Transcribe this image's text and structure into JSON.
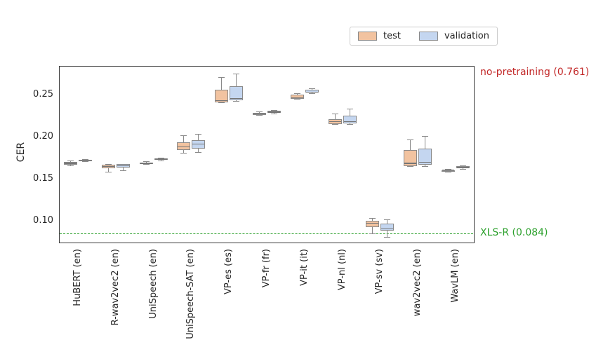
{
  "chart_data": {
    "type": "boxplot",
    "title": "",
    "xlabel": "",
    "ylabel": "CER",
    "ylim": [
      0.073,
      0.284
    ],
    "grid": false,
    "yticks": [
      {
        "value": 0.1,
        "label": "0.10"
      },
      {
        "value": 0.15,
        "label": "0.15"
      },
      {
        "value": 0.2,
        "label": "0.20"
      },
      {
        "value": 0.25,
        "label": "0.25"
      }
    ],
    "categories": [
      "HuBERT (en)",
      "R-wav2vec2 (en)",
      "UniSpeech (en)",
      "UniSpeech-SAT (en)",
      "VP-es (es)",
      "VP-fr (fr)",
      "VP-it (it)",
      "VP-nl (nl)",
      "VP-sv (sv)",
      "wav2vec2 (en)",
      "WavLM (en)"
    ],
    "box_format": "[whisker_low, q1, median, q3, whisker_high]",
    "series": [
      {
        "name": "test",
        "color": "#f2c3a0",
        "boxes": [
          [
            0.165,
            0.166,
            0.168,
            0.17,
            0.171
          ],
          [
            0.158,
            0.162,
            0.164,
            0.166,
            0.167
          ],
          [
            0.167,
            0.167,
            0.168,
            0.169,
            0.17
          ],
          [
            0.18,
            0.184,
            0.188,
            0.193,
            0.201
          ],
          [
            0.24,
            0.241,
            0.243,
            0.256,
            0.27
          ],
          [
            0.225,
            0.226,
            0.227,
            0.228,
            0.229
          ],
          [
            0.244,
            0.245,
            0.246,
            0.25,
            0.251
          ],
          [
            0.214,
            0.215,
            0.218,
            0.221,
            0.227
          ],
          [
            0.084,
            0.092,
            0.097,
            0.1,
            0.103
          ],
          [
            0.164,
            0.165,
            0.168,
            0.184,
            0.196
          ],
          [
            0.158,
            0.159,
            0.16,
            0.16,
            0.161
          ]
        ]
      },
      {
        "name": "validation",
        "color": "#c4d6f0",
        "boxes": [
          [
            0.17,
            0.171,
            0.172,
            0.172,
            0.173
          ],
          [
            0.159,
            0.163,
            0.165,
            0.167,
            0.167
          ],
          [
            0.171,
            0.172,
            0.173,
            0.174,
            0.174
          ],
          [
            0.181,
            0.186,
            0.191,
            0.196,
            0.203
          ],
          [
            0.242,
            0.243,
            0.245,
            0.26,
            0.274
          ],
          [
            0.227,
            0.228,
            0.229,
            0.231,
            0.231
          ],
          [
            0.251,
            0.252,
            0.253,
            0.256,
            0.257
          ],
          [
            0.214,
            0.216,
            0.218,
            0.225,
            0.233
          ],
          [
            0.08,
            0.088,
            0.09,
            0.096,
            0.101
          ],
          [
            0.164,
            0.166,
            0.169,
            0.186,
            0.2
          ],
          [
            0.161,
            0.162,
            0.163,
            0.165,
            0.165
          ]
        ]
      }
    ],
    "legend": {
      "position": "above-plot-right",
      "entries": [
        "test",
        "validation"
      ]
    },
    "annotations": [
      {
        "label": "no-pretraining (0.761)",
        "value": 0.761,
        "color": "#c22828",
        "type": "text-top-right-off-scale"
      },
      {
        "label": "XLS-R (0.084)",
        "value": 0.084,
        "color": "#2ca02c",
        "type": "dashed-horizontal-reference-line"
      }
    ]
  }
}
